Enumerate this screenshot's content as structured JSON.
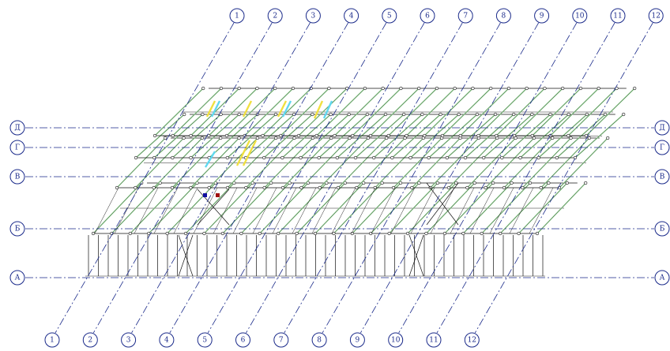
{
  "axes_numbered": [
    "1",
    "2",
    "3",
    "4",
    "5",
    "6",
    "7",
    "8",
    "9",
    "10",
    "11",
    "12"
  ],
  "axes_lettered": [
    "Д",
    "Г",
    "В",
    "Б",
    "А"
  ],
  "colors": {
    "axis": "#1a2a8a",
    "frame": "#111111",
    "highlight_green": "#a8e8a8",
    "highlight_yellow": "#f0e040",
    "highlight_cyan": "#60d8f0",
    "marker_blue": "#1010a0",
    "marker_red": "#a01010"
  }
}
